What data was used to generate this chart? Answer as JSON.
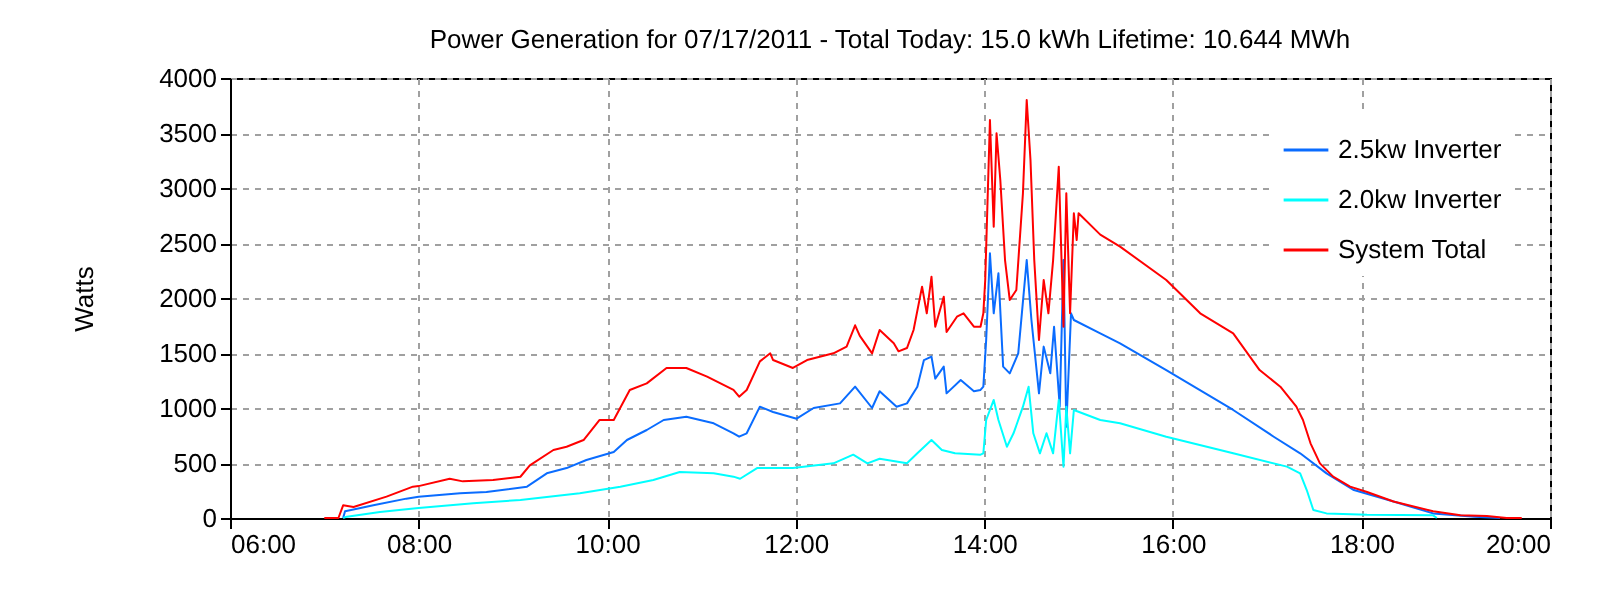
{
  "chart_data": {
    "type": "line",
    "title": "Power Generation for 07/17/2011 - Total Today: 15.0 kWh   Lifetime: 10.644 MWh",
    "ylabel": "Watts",
    "xlim": [
      6,
      20
    ],
    "xticks": [
      {
        "value": 6,
        "label": "06:00"
      },
      {
        "value": 8,
        "label": "08:00"
      },
      {
        "value": 10,
        "label": "10:00"
      },
      {
        "value": 12,
        "label": "12:00"
      },
      {
        "value": 14,
        "label": "14:00"
      },
      {
        "value": 16,
        "label": "16:00"
      },
      {
        "value": 18,
        "label": "18:00"
      },
      {
        "value": 20,
        "label": "20:00"
      }
    ],
    "ylim": [
      0,
      4000
    ],
    "yticks": [
      0,
      500,
      1000,
      1500,
      2000,
      2500,
      3000,
      3500,
      4000
    ],
    "grid": true,
    "legend": "top right",
    "series": [
      {
        "name": "2.5kw Inverter",
        "color": "#0a6cff",
        "x": [
          7.2,
          7.22,
          7.52,
          7.87,
          8.0,
          8.44,
          8.72,
          9.15,
          9.36,
          9.57,
          9.78,
          10.07,
          10.21,
          10.42,
          10.6,
          10.84,
          11.13,
          11.34,
          11.4,
          11.48,
          11.62,
          11.76,
          12.01,
          12.19,
          12.47,
          12.63,
          12.81,
          12.89,
          13.07,
          13.18,
          13.29,
          13.36,
          13.44,
          13.48,
          13.57,
          13.6,
          13.75,
          13.89,
          13.96,
          13.99,
          14.02,
          14.06,
          14.1,
          14.15,
          14.2,
          14.27,
          14.36,
          14.45,
          14.5,
          14.58,
          14.63,
          14.7,
          14.74,
          14.8,
          14.84,
          14.87,
          14.92,
          14.95,
          15.23,
          15.44,
          15.93,
          16.64,
          17.07,
          17.35,
          17.63,
          17.92,
          18.34,
          18.76,
          19.2,
          19.47
        ],
        "values": [
          0,
          61,
          115,
          176,
          194,
          224,
          236,
          285,
          406,
          454,
          527,
          600,
          709,
          800,
          891,
          921,
          861,
          770,
          739,
          770,
          1012,
          964,
          903,
          1000,
          1042,
          1194,
          1000,
          1152,
          1012,
          1042,
          1194,
          1436,
          1467,
          1267,
          1376,
          1133,
          1255,
          1152,
          1164,
          1194,
          1618,
          2406,
          1861,
          2224,
          1376,
          1315,
          1497,
          2345,
          1800,
          1133,
          1558,
          1315,
          1739,
          1012,
          2345,
          830,
          1861,
          1800,
          1679,
          1588,
          1345,
          982,
          739,
          588,
          406,
          254,
          150,
          42,
          12,
          0
        ]
      },
      {
        "name": "2.0kw Inverter",
        "color": "#00ffff",
        "x": [
          7.2,
          7.24,
          7.59,
          8.0,
          8.58,
          9.08,
          9.71,
          10.14,
          10.49,
          10.77,
          11.13,
          11.34,
          11.41,
          11.59,
          11.97,
          12.4,
          12.61,
          12.76,
          12.89,
          13.18,
          13.29,
          13.44,
          13.55,
          13.69,
          13.96,
          13.99,
          14.02,
          14.1,
          14.15,
          14.24,
          14.31,
          14.41,
          14.47,
          14.52,
          14.59,
          14.66,
          14.73,
          14.79,
          14.84,
          14.87,
          14.91,
          14.95,
          15.23,
          15.44,
          15.93,
          16.64,
          17.21,
          17.35,
          17.42,
          17.49,
          17.63,
          18.06,
          18.76,
          18.8
        ],
        "values": [
          0,
          12,
          55,
          91,
          133,
          164,
          224,
          285,
          345,
          418,
          406,
          376,
          357,
          454,
          454,
          497,
          576,
          497,
          539,
          497,
          588,
          709,
          618,
          588,
          576,
          588,
          891,
          1073,
          891,
          648,
          770,
          1012,
          1194,
          770,
          588,
          770,
          588,
          1073,
          467,
          1012,
          588,
          982,
          891,
          861,
          739,
          588,
          467,
          406,
          254,
          73,
          42,
          30,
          24,
          0
        ]
      },
      {
        "name": "System Total",
        "color": "#ff0000",
        "x": [
          7.0,
          7.15,
          7.2,
          7.31,
          7.66,
          7.94,
          8.0,
          8.33,
          8.47,
          8.79,
          9.08,
          9.18,
          9.43,
          9.57,
          9.75,
          9.92,
          10.07,
          10.24,
          10.42,
          10.63,
          10.84,
          11.06,
          11.34,
          11.4,
          11.48,
          11.62,
          11.73,
          11.76,
          11.97,
          12.12,
          12.4,
          12.54,
          12.63,
          12.68,
          12.81,
          12.89,
          13.04,
          13.09,
          13.18,
          13.25,
          13.34,
          13.39,
          13.44,
          13.48,
          13.57,
          13.6,
          13.71,
          13.78,
          13.89,
          13.96,
          13.99,
          14.01,
          14.06,
          14.1,
          14.13,
          14.17,
          14.22,
          14.27,
          14.34,
          14.41,
          14.45,
          14.49,
          14.53,
          14.58,
          14.63,
          14.68,
          14.73,
          14.79,
          14.84,
          14.87,
          14.91,
          14.95,
          14.98,
          15.0,
          15.23,
          15.44,
          15.93,
          16.29,
          16.64,
          16.92,
          17.14,
          17.31,
          17.38,
          17.46,
          17.56,
          17.7,
          17.88,
          18.06,
          18.34,
          18.76,
          19.05,
          19.33,
          19.54,
          19.7
        ],
        "values": [
          0,
          0,
          115,
          100,
          194,
          285,
          290,
          357,
          333,
          345,
          375,
          479,
          618,
          648,
          709,
          891,
          891,
          1164,
          1224,
          1364,
          1364,
          1285,
          1164,
          1103,
          1164,
          1424,
          1497,
          1436,
          1364,
          1436,
          1497,
          1558,
          1752,
          1655,
          1497,
          1709,
          1588,
          1515,
          1545,
          1709,
          2103,
          1861,
          2194,
          1739,
          2012,
          1691,
          1830,
          1861,
          1739,
          1739,
          1861,
          2164,
          3618,
          2648,
          3497,
          3073,
          2345,
          1982,
          2073,
          2952,
          3800,
          3255,
          2345,
          1618,
          2164,
          1861,
          2345,
          3194,
          1739,
          2952,
          1861,
          2770,
          2527,
          2770,
          2576,
          2467,
          2164,
          1861,
          1679,
          1345,
          1194,
          1012,
          891,
          679,
          497,
          376,
          285,
          236,
          150,
          61,
          24,
          18,
          0,
          0
        ]
      }
    ]
  }
}
